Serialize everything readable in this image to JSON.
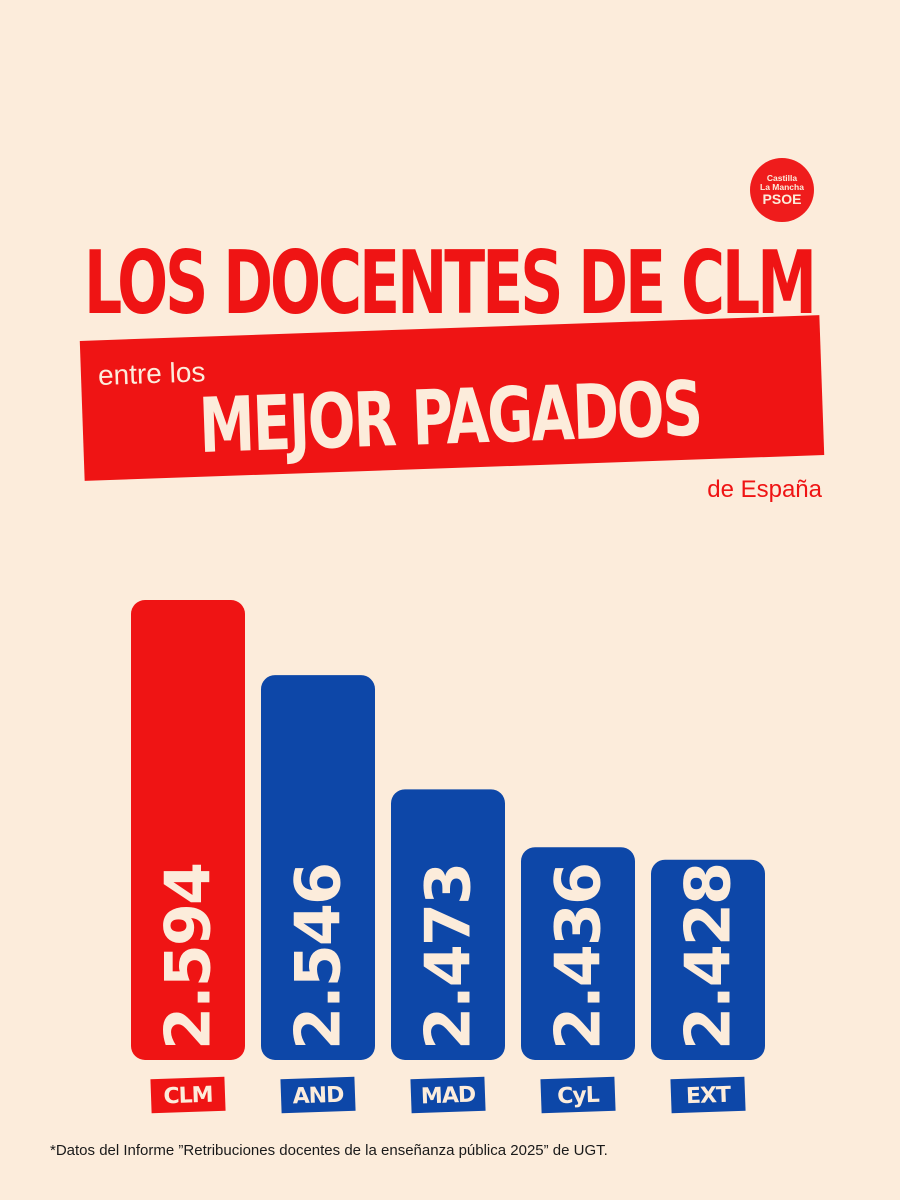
{
  "logo": {
    "line1": "Castilla",
    "line2": "La Mancha",
    "line3": "PSOE"
  },
  "headline": "LOS DOCENTES DE CLM",
  "band": {
    "small": "entre los",
    "big": "MEJOR PAGADOS"
  },
  "tagline": "de España",
  "colors": {
    "background": "#fcecdb",
    "highlight": "#ef1414",
    "others": "#0d47a8"
  },
  "chart_data": {
    "type": "bar",
    "orientation": "vertical",
    "categories": [
      "CLM",
      "AND",
      "MAD",
      "CyL",
      "EXT"
    ],
    "values": [
      2594,
      2546,
      2473,
      2436,
      2428
    ],
    "value_labels": [
      "2.594",
      "2.546",
      "2.473",
      "2.436",
      "2.428"
    ],
    "highlighted_category": "CLM",
    "bar_colors": [
      "#ef1414",
      "#0d47a8",
      "#0d47a8",
      "#0d47a8",
      "#0d47a8"
    ],
    "title": "",
    "xlabel": "",
    "ylabel": "",
    "grid": false,
    "axes_visible": false
  },
  "footnote": "*Datos del Informe ”Retribuciones docentes de la enseñanza pública 2025” de UGT."
}
